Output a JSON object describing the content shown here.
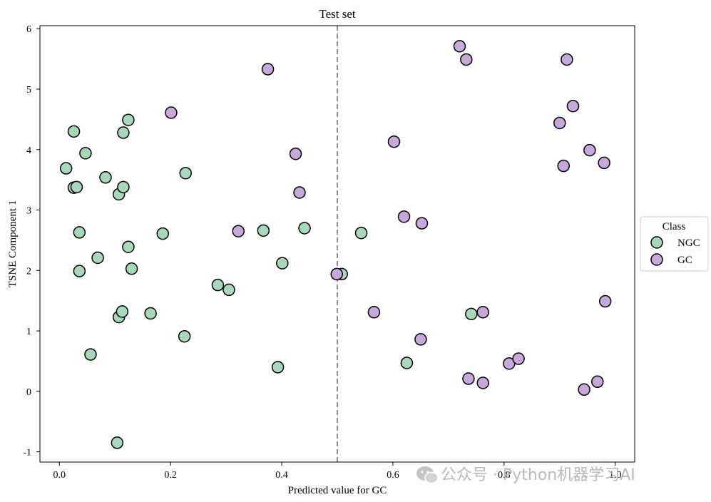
{
  "chart_data": {
    "type": "scatter",
    "title": "Test set",
    "xlabel": "Predicted value for GC",
    "ylabel": "TSNE Component 1",
    "xlim": [
      -0.035,
      1.035
    ],
    "ylim": [
      -1.17,
      6.05
    ],
    "xticks": [
      0.0,
      0.2,
      0.4,
      0.6,
      0.8,
      1.0
    ],
    "xtick_labels": [
      "0.0",
      "0.2",
      "0.4",
      "0.6",
      "0.8",
      "1.0"
    ],
    "yticks": [
      -1,
      0,
      1,
      2,
      3,
      4,
      5,
      6
    ],
    "ytick_labels": [
      "-1",
      "0",
      "1",
      "2",
      "3",
      "4",
      "5",
      "6"
    ],
    "grid": false,
    "threshold_line": {
      "x": 0.5,
      "style": "dashed",
      "color": "#8c8c8c"
    },
    "legend": {
      "title": "Class",
      "placement": "outside-right"
    },
    "series": [
      {
        "name": "NGC",
        "color": "#a8d8b9",
        "points": [
          {
            "x": 0.012,
            "y": 3.69
          },
          {
            "x": 0.026,
            "y": 3.37
          },
          {
            "x": 0.031,
            "y": 3.38
          },
          {
            "x": 0.026,
            "y": 4.3
          },
          {
            "x": 0.047,
            "y": 3.94
          },
          {
            "x": 0.036,
            "y": 2.63
          },
          {
            "x": 0.036,
            "y": 1.99
          },
          {
            "x": 0.056,
            "y": 0.61
          },
          {
            "x": 0.069,
            "y": 2.21
          },
          {
            "x": 0.083,
            "y": 3.54
          },
          {
            "x": 0.107,
            "y": 3.26
          },
          {
            "x": 0.115,
            "y": 3.38
          },
          {
            "x": 0.115,
            "y": 4.28
          },
          {
            "x": 0.124,
            "y": 4.49
          },
          {
            "x": 0.124,
            "y": 2.39
          },
          {
            "x": 0.13,
            "y": 2.03
          },
          {
            "x": 0.107,
            "y": 1.23
          },
          {
            "x": 0.113,
            "y": 1.32
          },
          {
            "x": 0.104,
            "y": -0.85
          },
          {
            "x": 0.164,
            "y": 1.29
          },
          {
            "x": 0.186,
            "y": 2.61
          },
          {
            "x": 0.227,
            "y": 3.61
          },
          {
            "x": 0.225,
            "y": 0.91
          },
          {
            "x": 0.285,
            "y": 1.76
          },
          {
            "x": 0.305,
            "y": 1.68
          },
          {
            "x": 0.367,
            "y": 2.66
          },
          {
            "x": 0.401,
            "y": 2.12
          },
          {
            "x": 0.393,
            "y": 0.4
          },
          {
            "x": 0.441,
            "y": 2.7
          },
          {
            "x": 0.508,
            "y": 1.94
          },
          {
            "x": 0.543,
            "y": 2.62
          },
          {
            "x": 0.625,
            "y": 0.47
          },
          {
            "x": 0.741,
            "y": 1.28
          }
        ]
      },
      {
        "name": "GC",
        "color": "#c6a8da",
        "points": [
          {
            "x": 0.201,
            "y": 4.61
          },
          {
            "x": 0.322,
            "y": 2.65
          },
          {
            "x": 0.375,
            "y": 5.33
          },
          {
            "x": 0.425,
            "y": 3.93
          },
          {
            "x": 0.432,
            "y": 3.29
          },
          {
            "x": 0.499,
            "y": 1.94
          },
          {
            "x": 0.566,
            "y": 1.31
          },
          {
            "x": 0.602,
            "y": 4.13
          },
          {
            "x": 0.62,
            "y": 2.89
          },
          {
            "x": 0.652,
            "y": 2.78
          },
          {
            "x": 0.65,
            "y": 0.86
          },
          {
            "x": 0.72,
            "y": 5.71
          },
          {
            "x": 0.732,
            "y": 5.49
          },
          {
            "x": 0.736,
            "y": 0.21
          },
          {
            "x": 0.762,
            "y": 1.31
          },
          {
            "x": 0.762,
            "y": 0.14
          },
          {
            "x": 0.809,
            "y": 0.46
          },
          {
            "x": 0.826,
            "y": 0.54
          },
          {
            "x": 0.9,
            "y": 4.44
          },
          {
            "x": 0.907,
            "y": 3.73
          },
          {
            "x": 0.913,
            "y": 5.49
          },
          {
            "x": 0.924,
            "y": 4.72
          },
          {
            "x": 0.954,
            "y": 3.99
          },
          {
            "x": 0.98,
            "y": 3.78
          },
          {
            "x": 0.982,
            "y": 1.49
          },
          {
            "x": 0.944,
            "y": 0.03
          },
          {
            "x": 0.968,
            "y": 0.16
          }
        ]
      }
    ]
  },
  "watermark": {
    "text": "公众号 · Python机器学习AI",
    "icon": "wechat-icon"
  }
}
